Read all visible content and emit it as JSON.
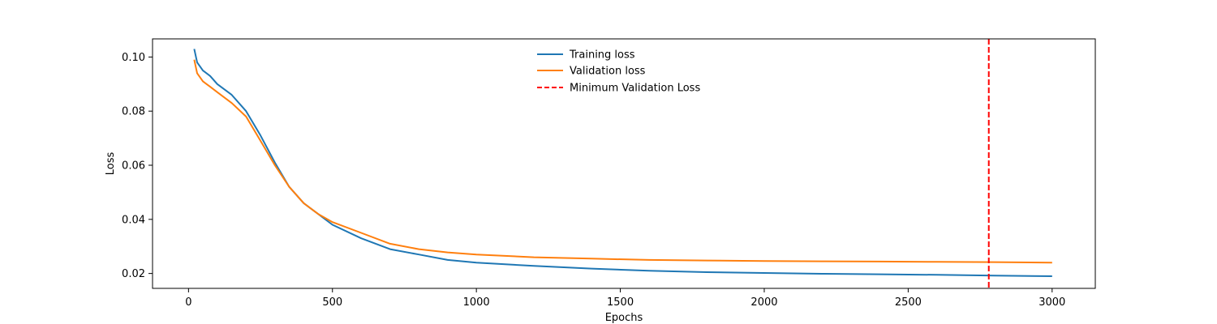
{
  "chart_data": {
    "type": "line",
    "title": "",
    "xlabel": "Epochs",
    "ylabel": "Loss",
    "xlim": [
      -125,
      3150
    ],
    "ylim": [
      0.0145,
      0.1067
    ],
    "x_ticks": [
      0,
      500,
      1000,
      1500,
      2000,
      2500,
      3000
    ],
    "x_tick_labels": [
      "0",
      "500",
      "1000",
      "1500",
      "2000",
      "2500",
      "3000"
    ],
    "y_ticks": [
      0.02,
      0.04,
      0.06,
      0.08,
      0.1
    ],
    "y_tick_labels": [
      "0.02",
      "0.04",
      "0.06",
      "0.08",
      "0.10"
    ],
    "grid": false,
    "legend_position": "top-center",
    "series": [
      {
        "name": "Training loss",
        "color": "#1f77b4",
        "style": "solid",
        "x": [
          20,
          30,
          50,
          75,
          100,
          150,
          200,
          250,
          300,
          350,
          400,
          450,
          500,
          600,
          700,
          800,
          900,
          1000,
          1200,
          1400,
          1600,
          1800,
          2000,
          2200,
          2400,
          2600,
          2800,
          3000
        ],
        "y": [
          0.103,
          0.098,
          0.095,
          0.093,
          0.09,
          0.086,
          0.08,
          0.071,
          0.061,
          0.052,
          0.046,
          0.042,
          0.038,
          0.033,
          0.029,
          0.027,
          0.025,
          0.024,
          0.0228,
          0.0218,
          0.021,
          0.0205,
          0.0202,
          0.0199,
          0.0197,
          0.0195,
          0.0192,
          0.019
        ]
      },
      {
        "name": "Validation loss",
        "color": "#ff7f0e",
        "style": "solid",
        "x": [
          20,
          30,
          50,
          75,
          100,
          150,
          200,
          250,
          300,
          350,
          400,
          450,
          500,
          600,
          700,
          800,
          900,
          1000,
          1200,
          1400,
          1600,
          1800,
          2000,
          2200,
          2400,
          2600,
          2800,
          3000
        ],
        "y": [
          0.099,
          0.094,
          0.091,
          0.089,
          0.087,
          0.083,
          0.078,
          0.069,
          0.06,
          0.052,
          0.046,
          0.042,
          0.039,
          0.035,
          0.031,
          0.029,
          0.0278,
          0.027,
          0.026,
          0.0255,
          0.025,
          0.0248,
          0.0246,
          0.0245,
          0.0244,
          0.0243,
          0.0242,
          0.024
        ]
      }
    ],
    "vlines": [
      {
        "name": "Minimum Validation Loss",
        "x": 2780,
        "color": "#ff0000",
        "style": "dashed"
      }
    ]
  }
}
